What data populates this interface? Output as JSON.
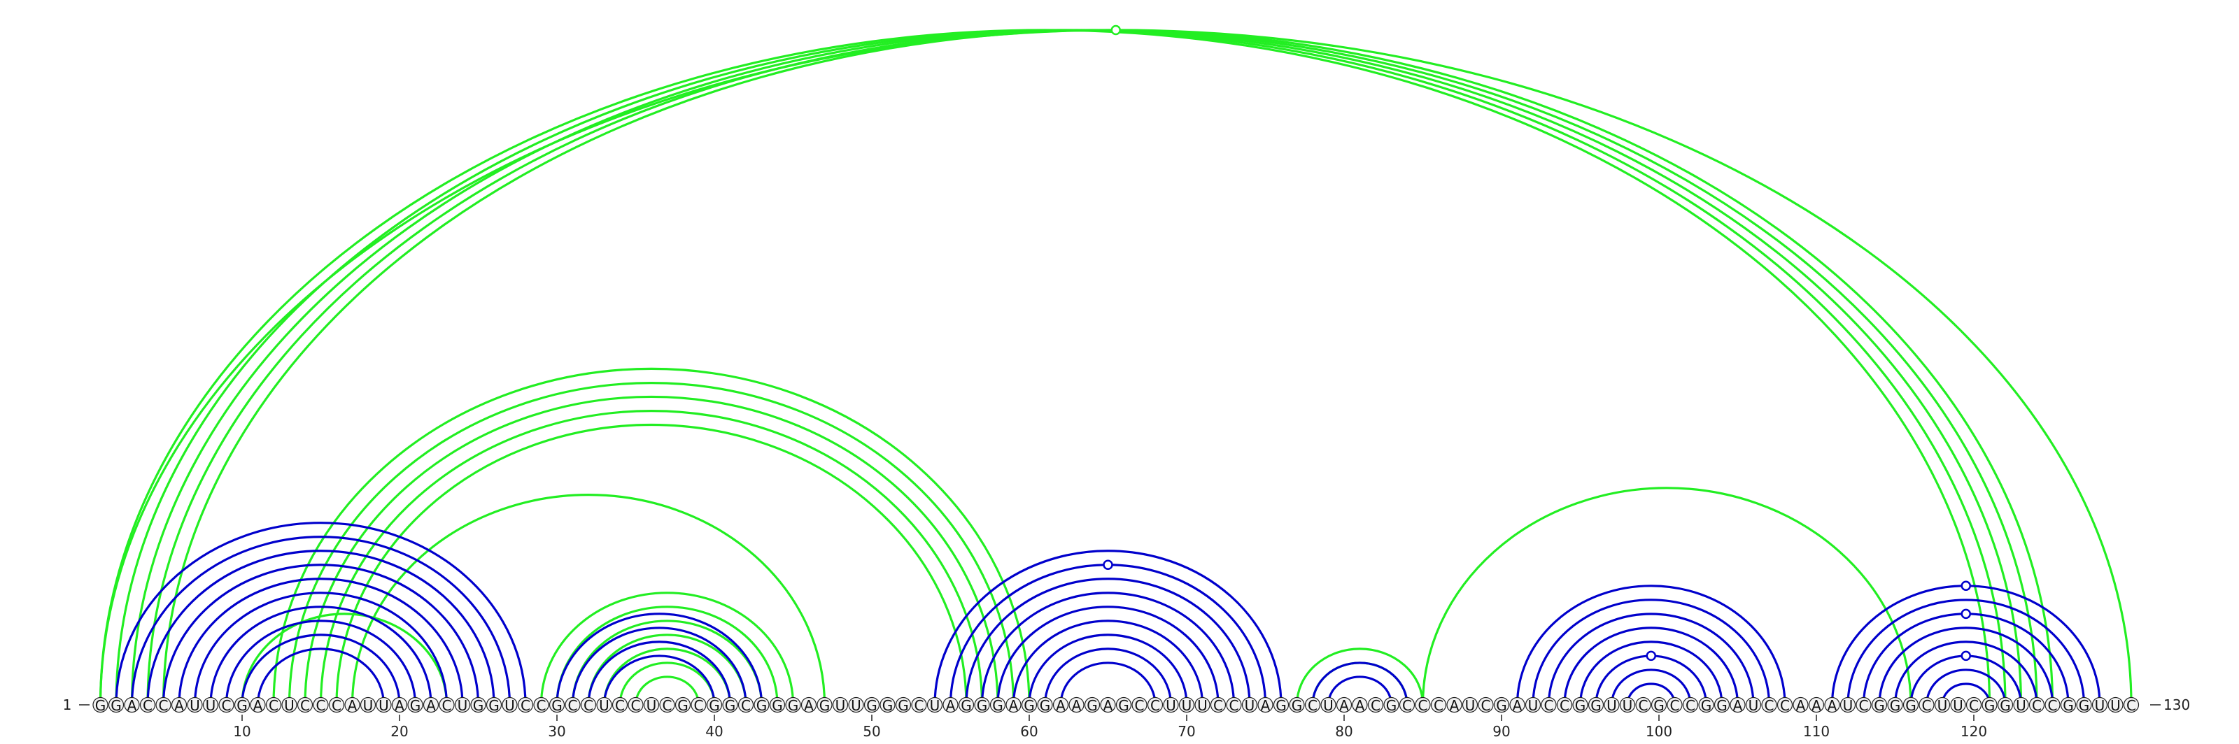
{
  "sequence": "GGACCAUUCGACUCCCAUUAGACUGGUCCGCCUCCUCGCGGCGGGAGUUGGGCUAGGGAGGAAGAGCCUUUCCUAGGCUAACGCCCAUCGAUCCGGUUCGCCGGAUCCAAAUCGGGCUUCGGUCCGGUUC",
  "start_label": "1",
  "end_label": "130",
  "ticks": [
    10,
    20,
    30,
    40,
    50,
    60,
    70,
    80,
    90,
    100,
    110,
    120
  ],
  "colors": {
    "blue": "#0000cc",
    "green": "#22ee22"
  },
  "arcs": {
    "blue": [
      [
        2,
        28
      ],
      [
        3,
        27
      ],
      [
        4,
        26
      ],
      [
        5,
        25
      ],
      [
        6,
        24
      ],
      [
        7,
        23
      ],
      [
        8,
        22
      ],
      [
        9,
        21
      ],
      [
        10,
        20
      ],
      [
        11,
        19
      ],
      [
        30,
        43
      ],
      [
        31,
        42
      ],
      [
        32,
        41
      ],
      [
        33,
        40
      ],
      [
        54,
        76
      ],
      [
        55,
        75
      ],
      [
        56,
        74
      ],
      [
        57,
        73
      ],
      [
        58,
        72
      ],
      [
        59,
        71
      ],
      [
        60,
        70
      ],
      [
        61,
        69
      ],
      [
        62,
        68
      ],
      [
        78,
        84
      ],
      [
        79,
        83
      ],
      [
        91,
        108
      ],
      [
        92,
        107
      ],
      [
        93,
        106
      ],
      [
        94,
        105
      ],
      [
        95,
        104
      ],
      [
        96,
        103
      ],
      [
        97,
        102
      ],
      [
        98,
        101
      ],
      [
        111,
        128
      ],
      [
        112,
        127
      ],
      [
        113,
        126
      ],
      [
        114,
        125
      ],
      [
        115,
        124
      ],
      [
        116,
        123
      ],
      [
        117,
        122
      ],
      [
        118,
        121
      ]
    ],
    "green": [
      [
        1,
        121
      ],
      [
        2,
        122
      ],
      [
        3,
        123
      ],
      [
        4,
        124
      ],
      [
        5,
        125
      ],
      [
        1,
        130
      ],
      [
        12,
        60
      ],
      [
        13,
        59
      ],
      [
        14,
        58
      ],
      [
        15,
        57
      ],
      [
        16,
        56
      ],
      [
        17,
        47
      ],
      [
        29,
        45
      ],
      [
        30,
        44
      ],
      [
        31,
        43
      ],
      [
        32,
        42
      ],
      [
        33,
        41
      ],
      [
        34,
        40
      ],
      [
        35,
        39
      ],
      [
        10,
        23
      ],
      [
        77,
        85
      ],
      [
        78,
        84
      ],
      [
        85,
        116
      ]
    ],
    "blue_markers": [
      [
        55,
        75
      ],
      [
        96,
        103
      ],
      [
        111,
        128
      ],
      [
        113,
        126
      ],
      [
        116,
        123
      ]
    ],
    "green_markers": [
      [
        1,
        130
      ]
    ]
  }
}
